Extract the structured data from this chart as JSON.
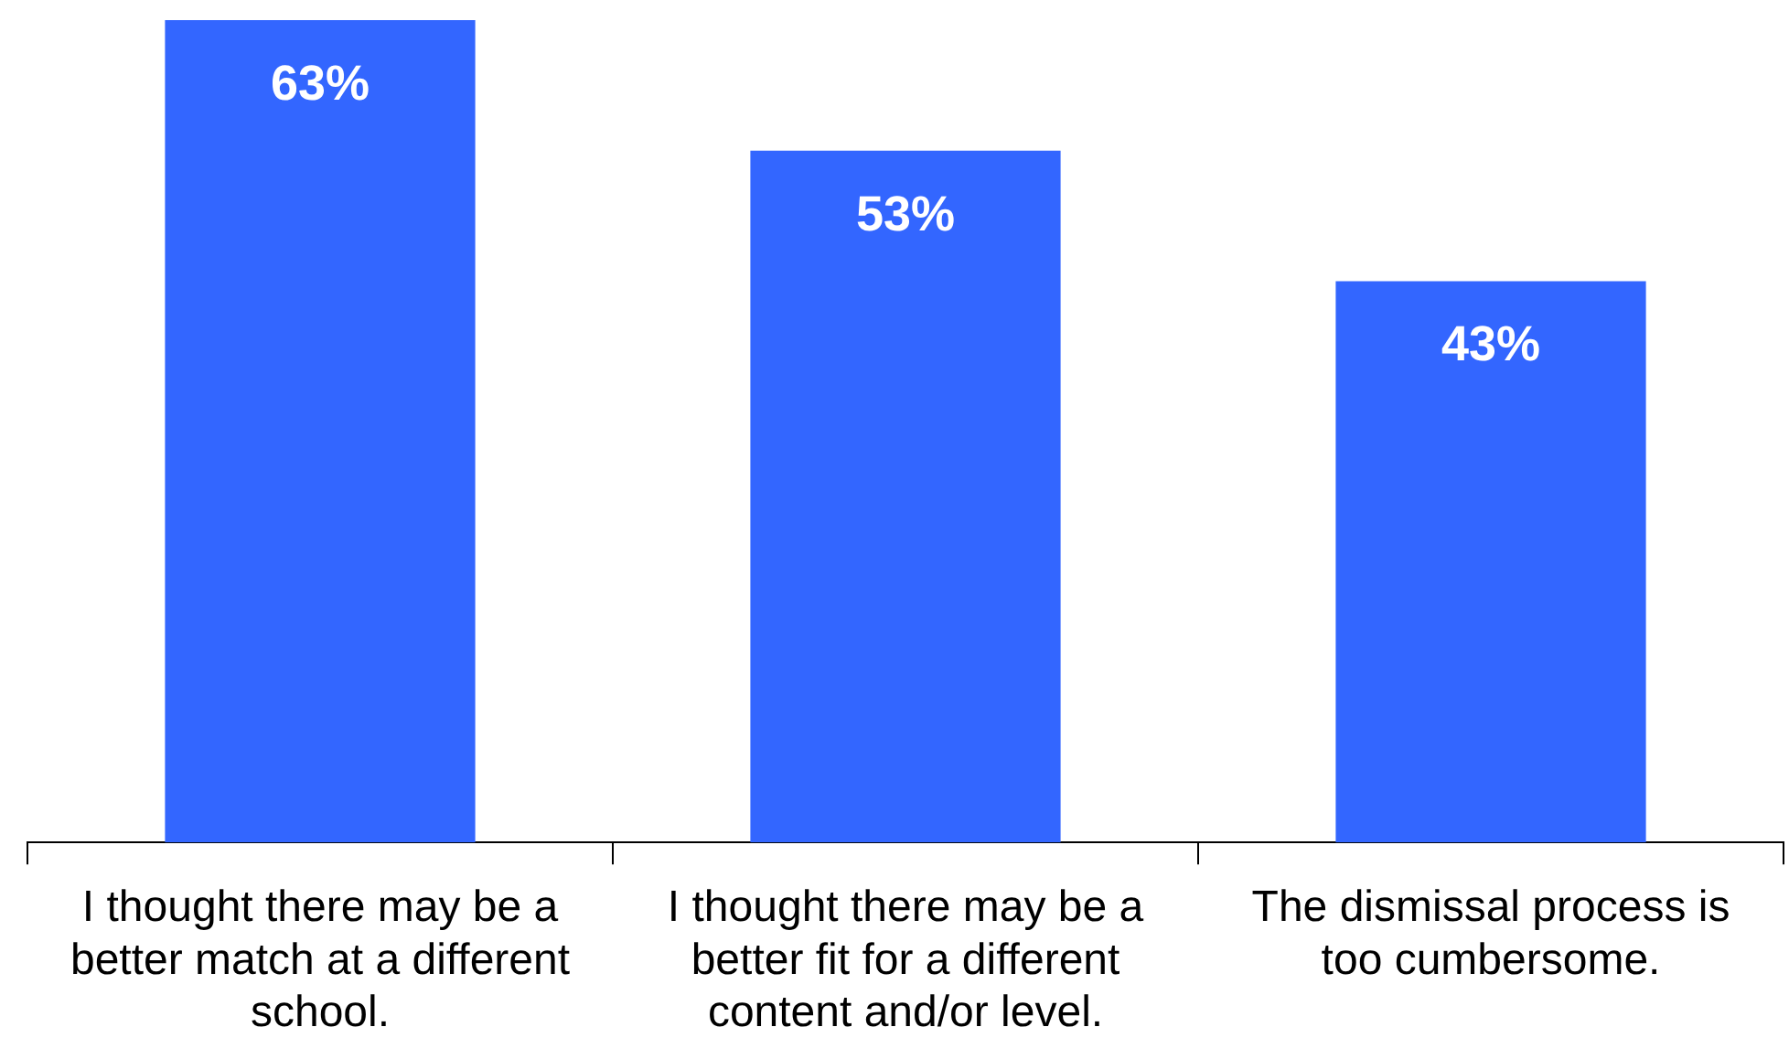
{
  "chart_data": {
    "type": "bar",
    "categories": [
      "I thought there may be a better match at a different school.",
      "I thought there may be a better fit for a different content and/or level.",
      "The dismissal process is too cumbersome."
    ],
    "values": [
      63,
      53,
      43
    ],
    "value_labels": [
      "63%",
      "53%",
      "43%"
    ],
    "color": "#3366ff",
    "grid": false,
    "legend": false,
    "tick_labels": "x"
  }
}
